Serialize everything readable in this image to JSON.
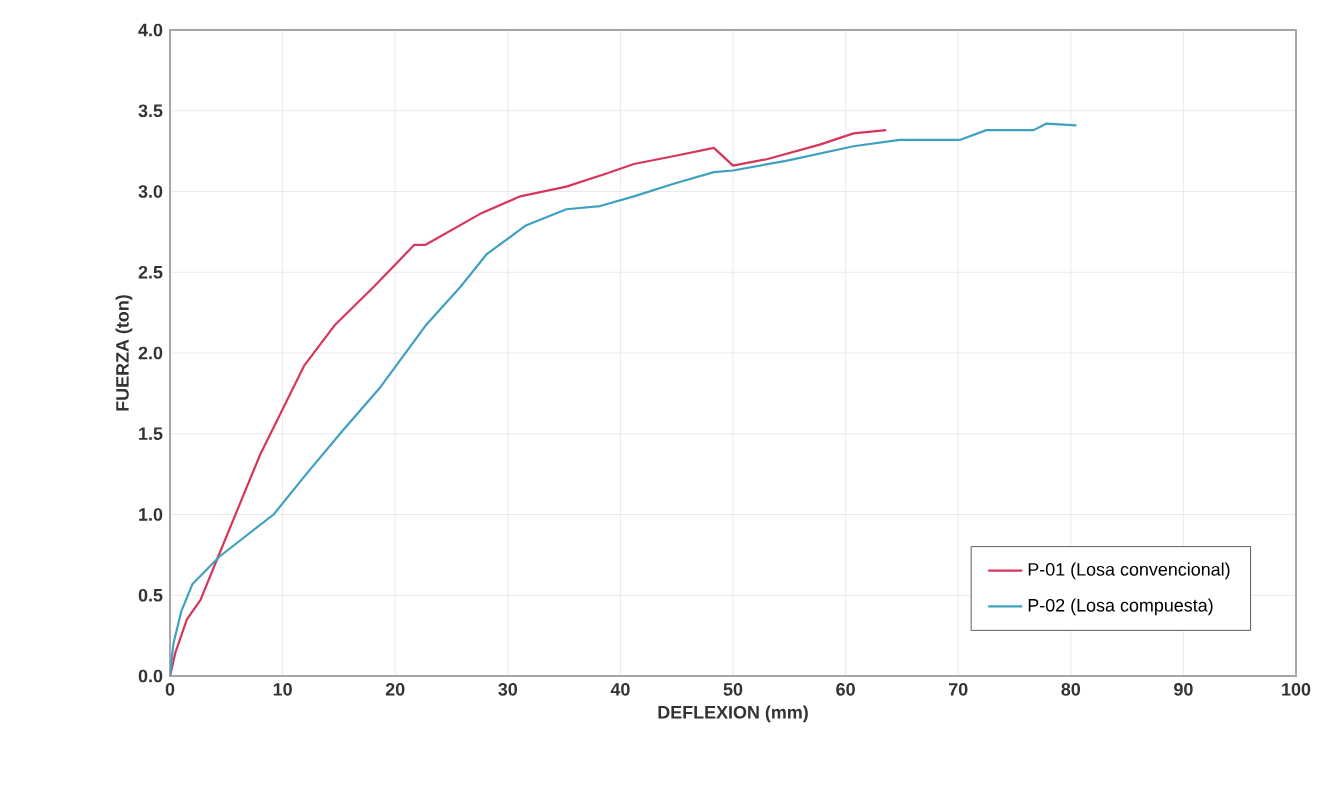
{
  "chart_data": {
    "type": "line",
    "xlabel": "DEFLEXION (mm)",
    "ylabel": "FUERZA (ton)",
    "xlim": [
      0,
      100
    ],
    "ylim": [
      0,
      4
    ],
    "xticks": [
      0,
      10,
      20,
      30,
      40,
      50,
      60,
      70,
      80,
      90,
      100
    ],
    "yticks": [
      {
        "value": 0,
        "label": "0.0"
      },
      {
        "value": 0.5,
        "label": "0.5"
      },
      {
        "value": 1,
        "label": "1.0"
      },
      {
        "value": 1.5,
        "label": "1.5"
      },
      {
        "value": 2,
        "label": "2.0"
      },
      {
        "value": 2.5,
        "label": "2.5"
      },
      {
        "value": 3,
        "label": "3.0"
      },
      {
        "value": 3.5,
        "label": "3.5"
      },
      {
        "value": 4,
        "label": "4.0"
      }
    ],
    "grid": true,
    "legend": "bottom right",
    "marker": "none",
    "line_style": "solid",
    "series": [
      {
        "name": "P-01 (Losa convencional)",
        "color": "#d6365a",
        "x": [
          0,
          0.5,
          1.5,
          2.7,
          4.4,
          8,
          11.9,
          14.6,
          18.1,
          21.7,
          22.7,
          27.5,
          31.1,
          35.2,
          38.7,
          41.2,
          44.8,
          48.3,
          50,
          53,
          57.7,
          60.7,
          63.6
        ],
        "values": [
          0,
          0.15,
          0.35,
          0.47,
          0.76,
          1.37,
          1.92,
          2.17,
          2.41,
          2.67,
          2.67,
          2.86,
          2.97,
          3.03,
          3.11,
          3.17,
          3.22,
          3.27,
          3.16,
          3.2,
          3.29,
          3.36,
          3.38
        ]
      },
      {
        "name": "P-02 (Losa compuesta)",
        "color": "#3fa0c0",
        "x": [
          0,
          0.3,
          1,
          2,
          4.4,
          9.2,
          12.1,
          15.1,
          18.7,
          22.7,
          25.8,
          28.1,
          31.6,
          35.2,
          38.2,
          41.2,
          44.8,
          48.3,
          50,
          54.7,
          60.7,
          64.8,
          70.2,
          72.5,
          76.7,
          77.8,
          80.5
        ],
        "values": [
          0,
          0.2,
          0.4,
          0.57,
          0.74,
          1.0,
          1.25,
          1.5,
          1.79,
          2.17,
          2.41,
          2.61,
          2.79,
          2.89,
          2.91,
          2.97,
          3.05,
          3.12,
          3.13,
          3.19,
          3.28,
          3.32,
          3.32,
          3.38,
          3.38,
          3.42,
          3.41
        ]
      }
    ]
  }
}
